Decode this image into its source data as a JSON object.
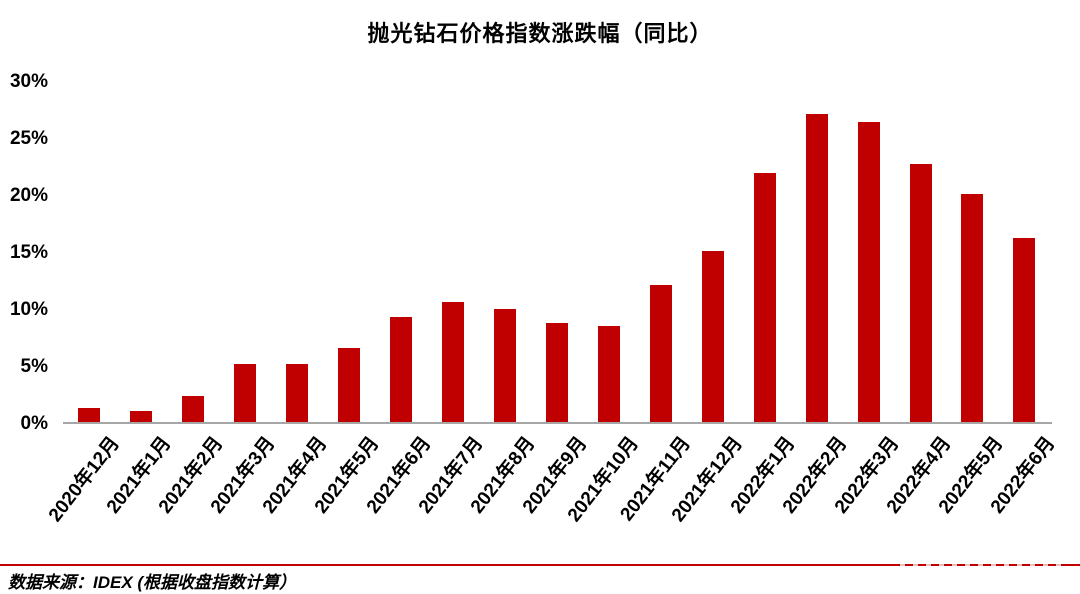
{
  "title": "抛光钻石价格指数涨跌幅（同比）",
  "source_note": "数据来源：IDEX (根据收盘指数计算）",
  "colors": {
    "bar": "#C00000",
    "axis_line": "#A6A6A6",
    "separator_line": "#C00000",
    "text": "#000000",
    "background": "#FFFFFF"
  },
  "chart_data": {
    "type": "bar",
    "title": "抛光钻石价格指数涨跌幅（同比）",
    "categories": [
      "2020年12月",
      "2021年1月",
      "2021年2月",
      "2021年3月",
      "2021年4月",
      "2021年5月",
      "2021年6月",
      "2021年7月",
      "2021年8月",
      "2021年9月",
      "2021年10月",
      "2021年11月",
      "2021年12月",
      "2022年1月",
      "2022年2月",
      "2022年3月",
      "2022年4月",
      "2022年5月",
      "2022年6月"
    ],
    "values": [
      1.2,
      1.0,
      2.3,
      5.1,
      5.1,
      6.5,
      9.2,
      10.5,
      9.9,
      8.7,
      8.4,
      12.0,
      15.0,
      21.8,
      27.0,
      26.3,
      22.6,
      20.0,
      16.1
    ],
    "unit": "%",
    "xlabel": "",
    "ylabel": "",
    "ylim": [
      0,
      30
    ],
    "ytick_step": 5,
    "yticks": [
      "0%",
      "5%",
      "10%",
      "15%",
      "20%",
      "25%",
      "30%"
    ],
    "grid": false,
    "legend": false,
    "bar_color": "#C00000",
    "x_label_rotation_deg": -52
  }
}
